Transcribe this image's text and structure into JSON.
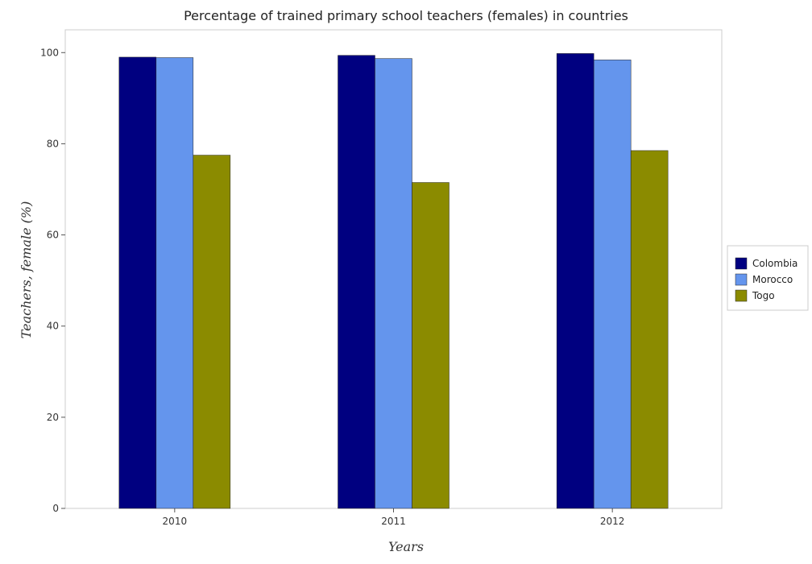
{
  "chart_data": {
    "type": "bar",
    "title": "Percentage of trained primary school teachers (females) in countries",
    "xlabel": "Years",
    "ylabel": "Teachers, female (%)",
    "categories": [
      "2010",
      "2011",
      "2012"
    ],
    "series": [
      {
        "name": "Colombia",
        "color": "#000080",
        "values": [
          99.0,
          99.4,
          99.8
        ]
      },
      {
        "name": "Morocco",
        "color": "#6495ED",
        "values": [
          98.9,
          98.7,
          98.4
        ]
      },
      {
        "name": "Togo",
        "color": "#8B8B00",
        "values": [
          77.5,
          71.5,
          78.5
        ]
      }
    ],
    "ylim": [
      0,
      105
    ],
    "yticks": [
      0,
      20,
      40,
      60,
      80,
      100
    ],
    "grid": false,
    "legend": "right"
  }
}
